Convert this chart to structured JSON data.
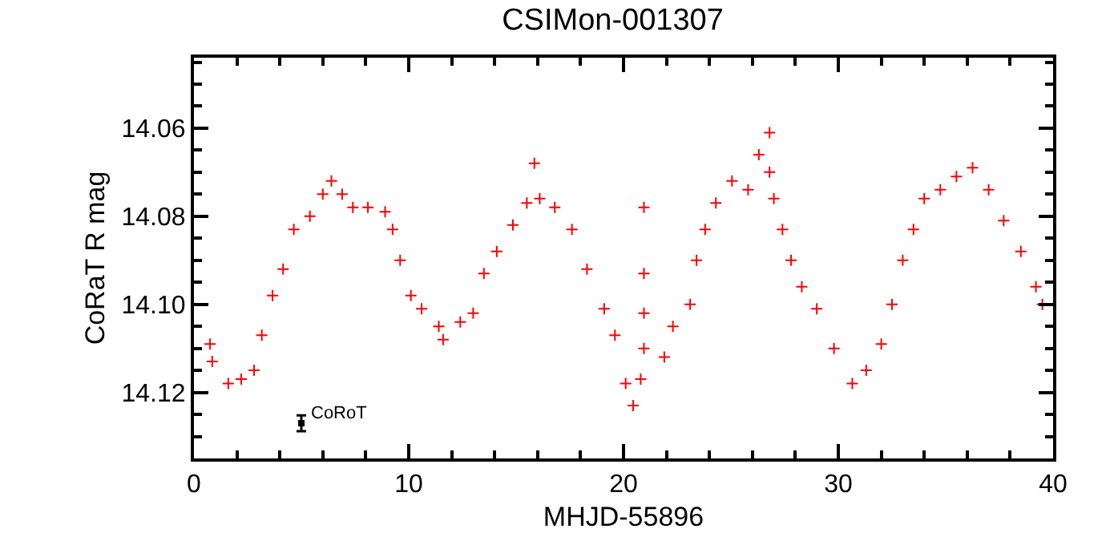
{
  "chart_data": {
    "type": "scatter",
    "title": "CSIMon-001307",
    "xlabel": "MHJD-55896",
    "ylabel": "CoRaT R mag",
    "xlim": [
      0,
      40
    ],
    "xticks": [
      0,
      10,
      20,
      30,
      40
    ],
    "ylim": [
      14.135,
      14.044
    ],
    "yticks": [
      {
        "value": 14.06,
        "label": "14.06"
      },
      {
        "value": 14.08,
        "label": "14.08"
      },
      {
        "value": 14.1,
        "label": "14.10"
      },
      {
        "value": 14.12,
        "label": "14.12"
      }
    ],
    "grid": false,
    "legend": false,
    "marker": "cross",
    "series": [
      {
        "color": "#ff0000",
        "x": [
          0.75,
          0.85,
          1.6,
          2.2,
          2.8,
          3.16,
          3.66,
          4.15,
          4.65,
          5.4,
          6.0,
          6.4,
          6.9,
          7.4,
          8.1,
          8.9,
          9.25,
          9.6,
          10.1,
          10.6,
          11.4,
          11.6,
          12.4,
          13.0,
          13.5,
          14.1,
          14.85,
          15.5,
          15.85,
          16.1,
          16.8,
          17.6,
          18.3,
          19.1,
          19.6,
          20.1,
          20.45,
          20.8,
          20.95,
          20.95,
          20.95,
          20.95,
          21.9,
          22.3,
          23.1,
          23.4,
          23.8,
          24.3,
          25.05,
          25.8,
          26.3,
          26.8,
          26.8,
          27.0,
          27.4,
          27.8,
          28.3,
          29.0,
          29.8,
          30.65,
          31.3,
          32.0,
          32.5,
          33.0,
          33.5,
          34.0,
          34.75,
          35.5,
          36.25,
          37.0,
          37.7,
          38.5,
          39.2,
          39.5
        ],
        "values": [
          14.109,
          14.113,
          14.118,
          14.117,
          14.115,
          14.107,
          14.098,
          14.092,
          14.083,
          14.08,
          14.075,
          14.072,
          14.075,
          14.078,
          14.078,
          14.079,
          14.083,
          14.09,
          14.098,
          14.101,
          14.105,
          14.108,
          14.104,
          14.102,
          14.093,
          14.088,
          14.082,
          14.077,
          14.068,
          14.076,
          14.078,
          14.083,
          14.092,
          14.101,
          14.107,
          14.118,
          14.123,
          14.117,
          14.078,
          14.093,
          14.102,
          14.11,
          14.112,
          14.105,
          14.1,
          14.09,
          14.083,
          14.077,
          14.072,
          14.074,
          14.066,
          14.07,
          14.061,
          14.076,
          14.083,
          14.09,
          14.096,
          14.101,
          14.11,
          14.118,
          14.115,
          14.109,
          14.1,
          14.09,
          14.083,
          14.076,
          14.074,
          14.071,
          14.069,
          14.074,
          14.081,
          14.088,
          14.096,
          14.1
        ]
      },
      {
        "name": "CoRoT",
        "color": "#000000",
        "marker": "square",
        "x": [
          5
        ],
        "values": [
          14.127
        ],
        "errors": [
          0.0018
        ]
      }
    ]
  }
}
